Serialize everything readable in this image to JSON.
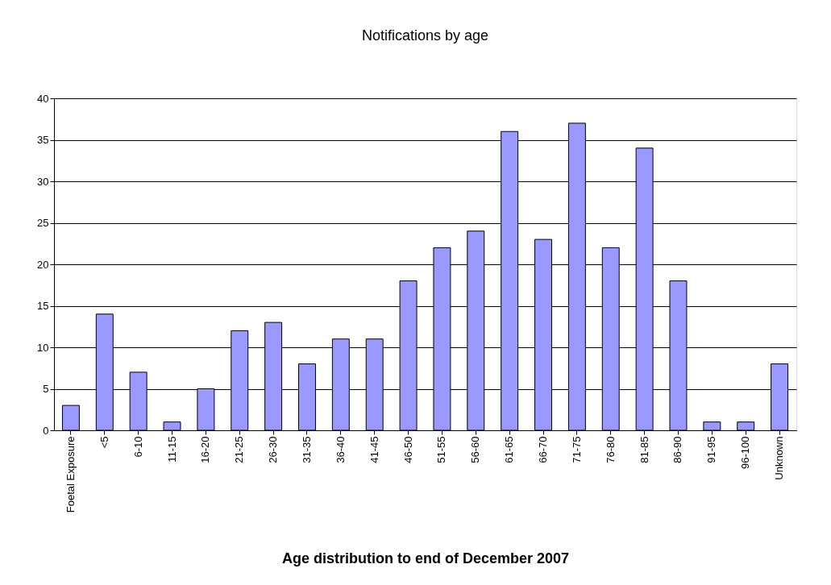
{
  "chart_data": {
    "type": "bar",
    "title": "Notifications by age",
    "xlabel": "Age distribution to end of December 2007",
    "categories": [
      "Foetal Exposure",
      "<5",
      "6-10",
      "11-15",
      "16-20",
      "21-25",
      "26-30",
      "31-35",
      "36-40",
      "41-45",
      "46-50",
      "51-55",
      "56-60",
      "61-65",
      "66-70",
      "71-75",
      "76-80",
      "81-85",
      "86-90",
      "91-95",
      "96-100",
      "Unknown"
    ],
    "values": [
      3,
      14,
      7,
      1,
      5,
      12,
      13,
      8,
      11,
      11,
      18,
      22,
      24,
      36,
      23,
      37,
      22,
      34,
      18,
      1,
      1,
      8
    ],
    "color": "#9999ff",
    "ylim": [
      0,
      40
    ],
    "yticks": [
      0,
      5,
      10,
      15,
      20,
      25,
      30,
      35,
      40
    ],
    "grid": "y"
  }
}
